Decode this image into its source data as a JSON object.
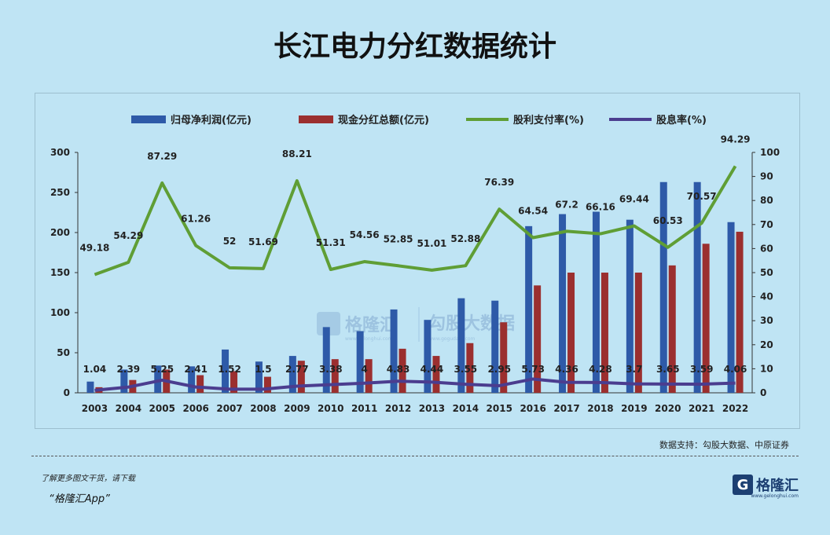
{
  "title": "长江电力分红数据统计",
  "source": "数据支持：勾股大数据、中原证券",
  "footer": {
    "note": "了解更多图文干货，请下载",
    "app": "“格隆汇App”"
  },
  "brand": {
    "name": "格隆汇",
    "url": "www.gelonghui.com"
  },
  "watermark": {
    "left": "格隆汇",
    "left_url": "www.gelonghui.com",
    "right": "勾股大数据",
    "right_url": "www.gogudata.com"
  },
  "colors": {
    "net_profit": "#2e5aa8",
    "dividend": "#9b2f2f",
    "payout": "#5f9e35",
    "yield": "#4b3d8f"
  },
  "chart_data": {
    "type": "bar",
    "categories": [
      "2003",
      "2004",
      "2005",
      "2006",
      "2007",
      "2008",
      "2009",
      "2010",
      "2011",
      "2012",
      "2013",
      "2014",
      "2015",
      "2016",
      "2017",
      "2018",
      "2019",
      "2020",
      "2021",
      "2022"
    ],
    "left_axis": {
      "ylim": [
        0,
        300
      ],
      "ticks": [
        "0",
        "50",
        "100",
        "150",
        "200",
        "250",
        "300"
      ]
    },
    "right_axis": {
      "ylim": [
        0,
        100
      ],
      "ticks": [
        "0",
        "10",
        "20",
        "30",
        "40",
        "50",
        "60",
        "70",
        "80",
        "90",
        "100"
      ]
    },
    "series": [
      {
        "name": "归母净利润(亿元)",
        "type": "bar",
        "axis": "left",
        "values": [
          14,
          29,
          34,
          33,
          54,
          39,
          46,
          82,
          77,
          104,
          91,
          118,
          115,
          208,
          223,
          226,
          216,
          263,
          263,
          213
        ]
      },
      {
        "name": "现金分红总额(亿元)",
        "type": "bar",
        "axis": "left",
        "values": [
          7,
          16,
          29,
          22,
          27,
          20,
          40,
          42,
          42,
          55,
          46,
          62,
          88,
          134,
          150,
          150,
          150,
          159,
          186,
          201
        ]
      },
      {
        "name": "股利支付率(%)",
        "type": "line",
        "axis": "right",
        "values": [
          49.18,
          54.29,
          87.29,
          61.26,
          52,
          51.69,
          88.21,
          51.31,
          54.56,
          52.85,
          51.01,
          52.88,
          76.39,
          64.54,
          67.2,
          66.16,
          69.44,
          60.53,
          70.57,
          94.29
        ],
        "labels": [
          "49.18",
          "54.29",
          "87.29",
          "61.26",
          "52",
          "51.69",
          "88.21",
          "51.31",
          "54.56",
          "52.85",
          "51.01",
          "52.88",
          "76.39",
          "64.54",
          "67.2",
          "66.16",
          "69.44",
          "60.53",
          "70.57",
          "94.29"
        ]
      },
      {
        "name": "股息率(%)",
        "type": "line",
        "axis": "right",
        "values": [
          1.04,
          2.39,
          5.25,
          2.41,
          1.52,
          1.5,
          2.77,
          3.38,
          4,
          4.83,
          4.44,
          3.55,
          2.95,
          5.73,
          4.36,
          4.28,
          3.7,
          3.65,
          3.59,
          4.06
        ],
        "labels": [
          "1.04",
          "2.39",
          "5.25",
          "2.41",
          "1.52",
          "1.5",
          "2.77",
          "3.38",
          "4",
          "4.83",
          "4.44",
          "3.55",
          "2.95",
          "5.73",
          "4.36",
          "4.28",
          "3.7",
          "3.65",
          "3.59",
          "4.06"
        ]
      }
    ],
    "legend": "top"
  }
}
